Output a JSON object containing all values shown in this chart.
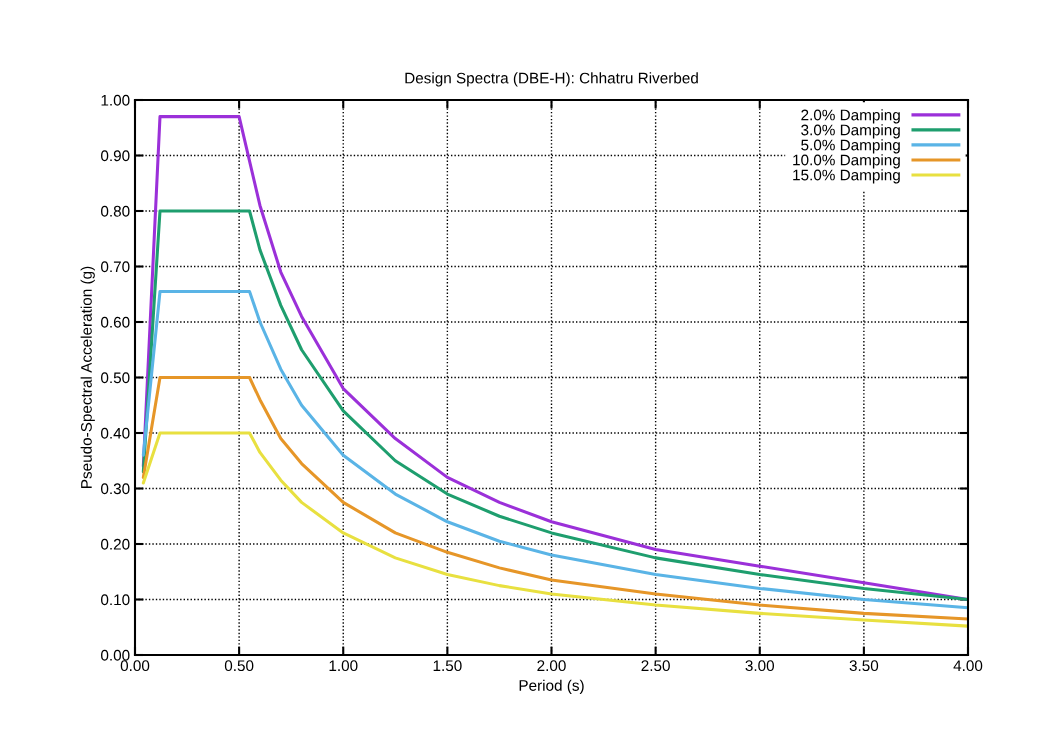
{
  "chart_data": {
    "type": "line",
    "title": "Design Spectra (DBE-H): Chhatru Riverbed",
    "xlabel": "Period (s)",
    "ylabel": "Pseudo-Spectral Acceleration (g)",
    "xlim": [
      0,
      4
    ],
    "ylim": [
      0,
      1
    ],
    "xticks": [
      {
        "value": 0,
        "label": "0.00"
      },
      {
        "value": 0.5,
        "label": "0.50"
      },
      {
        "value": 1,
        "label": "1.00"
      },
      {
        "value": 1.5,
        "label": "1.50"
      },
      {
        "value": 2,
        "label": "2.00"
      },
      {
        "value": 2.5,
        "label": "2.50"
      },
      {
        "value": 3,
        "label": "3.00"
      },
      {
        "value": 3.5,
        "label": "3.50"
      },
      {
        "value": 4,
        "label": "4.00"
      }
    ],
    "yticks": [
      {
        "value": 0,
        "label": "0.00"
      },
      {
        "value": 0.1,
        "label": "0.10"
      },
      {
        "value": 0.2,
        "label": "0.20"
      },
      {
        "value": 0.3,
        "label": "0.30"
      },
      {
        "value": 0.4,
        "label": "0.40"
      },
      {
        "value": 0.5,
        "label": "0.50"
      },
      {
        "value": 0.6,
        "label": "0.60"
      },
      {
        "value": 0.7,
        "label": "0.70"
      },
      {
        "value": 0.8,
        "label": "0.80"
      },
      {
        "value": 0.9,
        "label": "0.90"
      },
      {
        "value": 1,
        "label": "1.00"
      }
    ],
    "grid": true,
    "legend": "top right",
    "marker": "none",
    "line_style": "solid",
    "series": [
      {
        "name": "2.0% Damping",
        "color": "#9b30d9",
        "x": [
          0.04,
          0.12,
          0.5,
          0.6,
          0.7,
          0.8,
          1.0,
          1.25,
          1.5,
          1.75,
          2.0,
          2.5,
          3.0,
          3.5,
          4.0
        ],
        "values": [
          0.34,
          0.97,
          0.97,
          0.81,
          0.69,
          0.61,
          0.48,
          0.39,
          0.32,
          0.275,
          0.24,
          0.19,
          0.16,
          0.13,
          0.1
        ]
      },
      {
        "name": "3.0% Damping",
        "color": "#1e9e6e",
        "x": [
          0.04,
          0.12,
          0.55,
          0.6,
          0.7,
          0.8,
          1.0,
          1.25,
          1.5,
          1.75,
          2.0,
          2.5,
          3.0,
          3.5,
          4.0
        ],
        "values": [
          0.33,
          0.8,
          0.8,
          0.73,
          0.63,
          0.55,
          0.44,
          0.35,
          0.29,
          0.25,
          0.22,
          0.175,
          0.145,
          0.12,
          0.1
        ]
      },
      {
        "name": "5.0% Damping",
        "color": "#5ab4e6",
        "x": [
          0.04,
          0.12,
          0.55,
          0.6,
          0.7,
          0.8,
          1.0,
          1.25,
          1.5,
          1.75,
          2.0,
          2.5,
          3.0,
          3.5,
          4.0
        ],
        "values": [
          0.36,
          0.655,
          0.655,
          0.6,
          0.515,
          0.45,
          0.36,
          0.29,
          0.24,
          0.205,
          0.18,
          0.145,
          0.12,
          0.1,
          0.085
        ]
      },
      {
        "name": "10.0% Damping",
        "color": "#e69628",
        "x": [
          0.04,
          0.12,
          0.55,
          0.6,
          0.7,
          0.8,
          1.0,
          1.25,
          1.5,
          1.75,
          2.0,
          2.5,
          3.0,
          3.5,
          4.0
        ],
        "values": [
          0.32,
          0.5,
          0.5,
          0.46,
          0.39,
          0.345,
          0.275,
          0.22,
          0.185,
          0.157,
          0.135,
          0.11,
          0.09,
          0.075,
          0.065
        ]
      },
      {
        "name": "15.0% Damping",
        "color": "#e8e040",
        "x": [
          0.04,
          0.12,
          0.55,
          0.6,
          0.7,
          0.8,
          1.0,
          1.25,
          1.5,
          1.75,
          2.0,
          2.5,
          3.0,
          3.5,
          4.0
        ],
        "values": [
          0.31,
          0.4,
          0.4,
          0.365,
          0.315,
          0.275,
          0.22,
          0.175,
          0.145,
          0.125,
          0.11,
          0.09,
          0.075,
          0.063,
          0.052
        ]
      }
    ]
  }
}
